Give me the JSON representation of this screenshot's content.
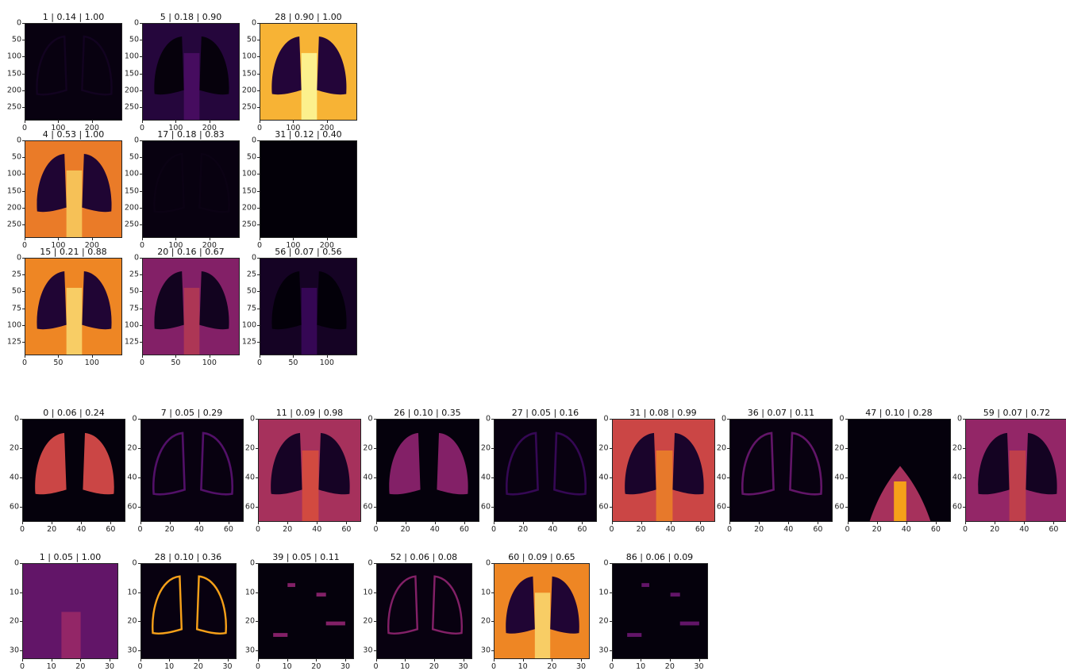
{
  "chart_data": {
    "type": "heatmap",
    "colormap": "inferno",
    "rows": [
      {
        "xticks": [
          "0",
          "100",
          "200"
        ],
        "yticks": [
          "0",
          "50",
          "100",
          "150",
          "200",
          "250"
        ],
        "extent": 290,
        "panels": [
          {
            "title": "1 | 0.14 | 1.00",
            "level": 0.07,
            "pattern": "lung-edges"
          },
          {
            "title": "5 | 0.18 | 0.90",
            "level": 0.14,
            "pattern": "lung-dark"
          },
          {
            "title": "28 | 0.90 | 1.00",
            "level": 0.88,
            "pattern": "lung-dark"
          }
        ]
      },
      {
        "xticks": [
          "0",
          "100",
          "200"
        ],
        "yticks": [
          "0",
          "50",
          "100",
          "150",
          "200",
          "250"
        ],
        "extent": 290,
        "panels": [
          {
            "title": "4 | 0.53 | 1.00",
            "level": 0.78,
            "pattern": "lung-dark"
          },
          {
            "title": "17 | 0.18 | 0.83",
            "level": 0.04,
            "pattern": "lung-edges"
          },
          {
            "title": "31 | 0.12 | 0.40",
            "level": 0.01,
            "pattern": "flat"
          }
        ]
      },
      {
        "xticks": [
          "0",
          "50",
          "100"
        ],
        "yticks": [
          "0",
          "25",
          "50",
          "75",
          "100",
          "125"
        ],
        "extent": 145,
        "panels": [
          {
            "title": "15 | 0.21 | 0.88",
            "level": 0.8,
            "pattern": "lung-dark"
          },
          {
            "title": "20 | 0.16 | 0.67",
            "level": 0.45,
            "pattern": "lung-dark"
          },
          {
            "title": "56 | 0.07 | 0.56",
            "level": 0.08,
            "pattern": "lung-dark"
          }
        ]
      },
      {
        "xticks": [
          "0",
          "20",
          "40",
          "60"
        ],
        "yticks": [
          "0",
          "20",
          "40",
          "60"
        ],
        "extent": 70,
        "panels": [
          {
            "title": "0 | 0.06 | 0.24",
            "level": 0.65,
            "pattern": "lung-bright"
          },
          {
            "title": "7 | 0.05 | 0.29",
            "level": 0.3,
            "pattern": "lung-edges"
          },
          {
            "title": "11 | 0.09 | 0.98",
            "level": 0.55,
            "pattern": "lung-dark"
          },
          {
            "title": "26 | 0.10 | 0.35",
            "level": 0.45,
            "pattern": "lung-bright"
          },
          {
            "title": "27 | 0.05 | 0.16",
            "level": 0.2,
            "pattern": "lung-edges"
          },
          {
            "title": "31 | 0.08 | 0.99",
            "level": 0.65,
            "pattern": "lung-dark"
          },
          {
            "title": "36 | 0.07 | 0.11",
            "level": 0.35,
            "pattern": "lung-edges"
          },
          {
            "title": "47 | 0.10 | 0.28",
            "level": 0.85,
            "pattern": "center-blob"
          },
          {
            "title": "59 | 0.07 | 0.72",
            "level": 0.5,
            "pattern": "lung-dark"
          }
        ]
      },
      {
        "xticks": [
          "0",
          "10",
          "20",
          "30"
        ],
        "yticks": [
          "0",
          "10",
          "20",
          "30"
        ],
        "extent": 33,
        "panels": [
          {
            "title": "1 | 0.05 | 1.00",
            "level": 0.35,
            "pattern": "flat-purple"
          },
          {
            "title": "28 | 0.10 | 0.36",
            "level": 0.85,
            "pattern": "lung-edges"
          },
          {
            "title": "39 | 0.05 | 0.11",
            "level": 0.45,
            "pattern": "sparse"
          },
          {
            "title": "52 | 0.06 | 0.08",
            "level": 0.45,
            "pattern": "lung-edges"
          },
          {
            "title": "60 | 0.09 | 0.65",
            "level": 0.8,
            "pattern": "lung-dark"
          },
          {
            "title": "86 | 0.06 | 0.09",
            "level": 0.35,
            "pattern": "sparse"
          }
        ]
      }
    ]
  }
}
